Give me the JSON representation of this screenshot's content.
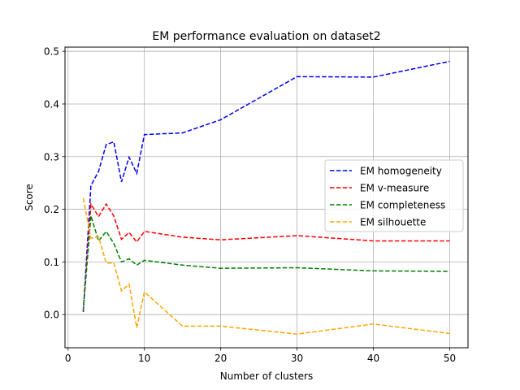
{
  "chart_data": {
    "type": "line",
    "title": "EM performance evaluation on dataset2",
    "xlabel": "Number of clusters",
    "ylabel": "Score",
    "xlim": [
      -0.4,
      52.4
    ],
    "ylim": [
      -0.063,
      0.508
    ],
    "xticks": [
      0,
      10,
      20,
      30,
      40,
      50
    ],
    "yticks": [
      0.0,
      0.1,
      0.2,
      0.3,
      0.4,
      0.5
    ],
    "grid": true,
    "legend_placement": "center-right",
    "line_style": "dashed",
    "series": [
      {
        "name": "EM homogeneity",
        "color": "#0000ff",
        "x": [
          2,
          3,
          4,
          5,
          6,
          7,
          8,
          9,
          10,
          15,
          20,
          30,
          40,
          50
        ],
        "y": [
          0.005,
          0.245,
          0.272,
          0.323,
          0.328,
          0.252,
          0.299,
          0.268,
          0.342,
          0.345,
          0.37,
          0.452,
          0.451,
          0.481
        ]
      },
      {
        "name": "EM v-measure",
        "color": "#ff0000",
        "x": [
          2,
          3,
          4,
          5,
          6,
          7,
          8,
          9,
          10,
          15,
          20,
          30,
          40,
          50
        ],
        "y": [
          0.007,
          0.21,
          0.186,
          0.21,
          0.187,
          0.143,
          0.156,
          0.138,
          0.158,
          0.147,
          0.142,
          0.15,
          0.14,
          0.14
        ]
      },
      {
        "name": "EM completeness",
        "color": "#008000",
        "x": [
          2,
          3,
          4,
          5,
          6,
          7,
          8,
          9,
          10,
          15,
          20,
          30,
          40,
          50
        ],
        "y": [
          0.008,
          0.188,
          0.14,
          0.158,
          0.135,
          0.1,
          0.106,
          0.094,
          0.103,
          0.094,
          0.088,
          0.089,
          0.083,
          0.082
        ]
      },
      {
        "name": "EM silhouette",
        "color": "#ffa500",
        "x": [
          2,
          3,
          4,
          5,
          6,
          7,
          8,
          9,
          10,
          15,
          20,
          30,
          40,
          50
        ],
        "y": [
          0.221,
          0.145,
          0.148,
          0.098,
          0.098,
          0.045,
          0.058,
          -0.025,
          0.043,
          -0.022,
          -0.022,
          -0.037,
          -0.018,
          -0.036
        ]
      }
    ]
  }
}
